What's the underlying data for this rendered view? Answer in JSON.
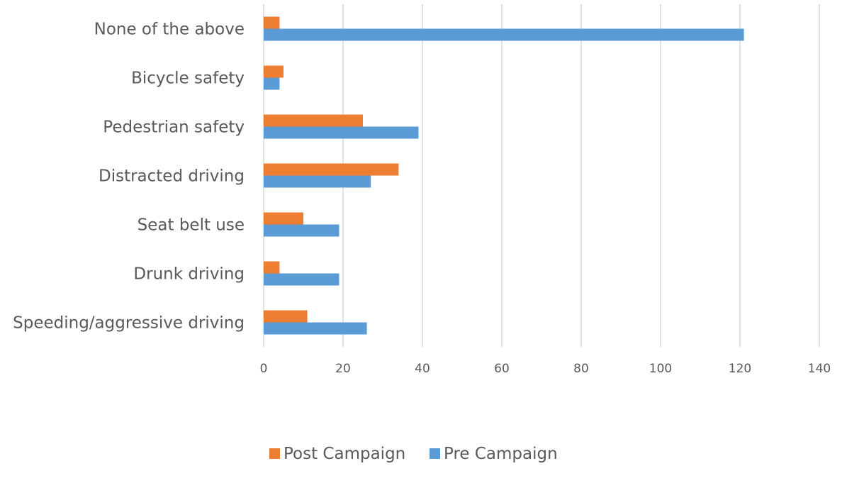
{
  "chart_data": {
    "type": "bar",
    "orientation": "horizontal",
    "categories": [
      "None of the above",
      "Bicycle safety",
      "Pedestrian safety",
      "Distracted driving",
      "Seat belt use",
      "Drunk driving",
      "Speeding/aggressive driving"
    ],
    "series": [
      {
        "name": "Post Campaign",
        "color": "#ed7d31",
        "values": [
          4,
          5,
          25,
          34,
          10,
          4,
          11
        ]
      },
      {
        "name": "Pre Campaign",
        "color": "#5b9bd5",
        "values": [
          121,
          4,
          39,
          27,
          19,
          19,
          26
        ]
      }
    ],
    "xlim": [
      0,
      140
    ],
    "x_ticks": [
      0,
      20,
      40,
      60,
      80,
      100,
      120,
      140
    ],
    "title": "",
    "xlabel": "",
    "ylabel": "",
    "grid": "vertical",
    "legend_position": "bottom"
  }
}
